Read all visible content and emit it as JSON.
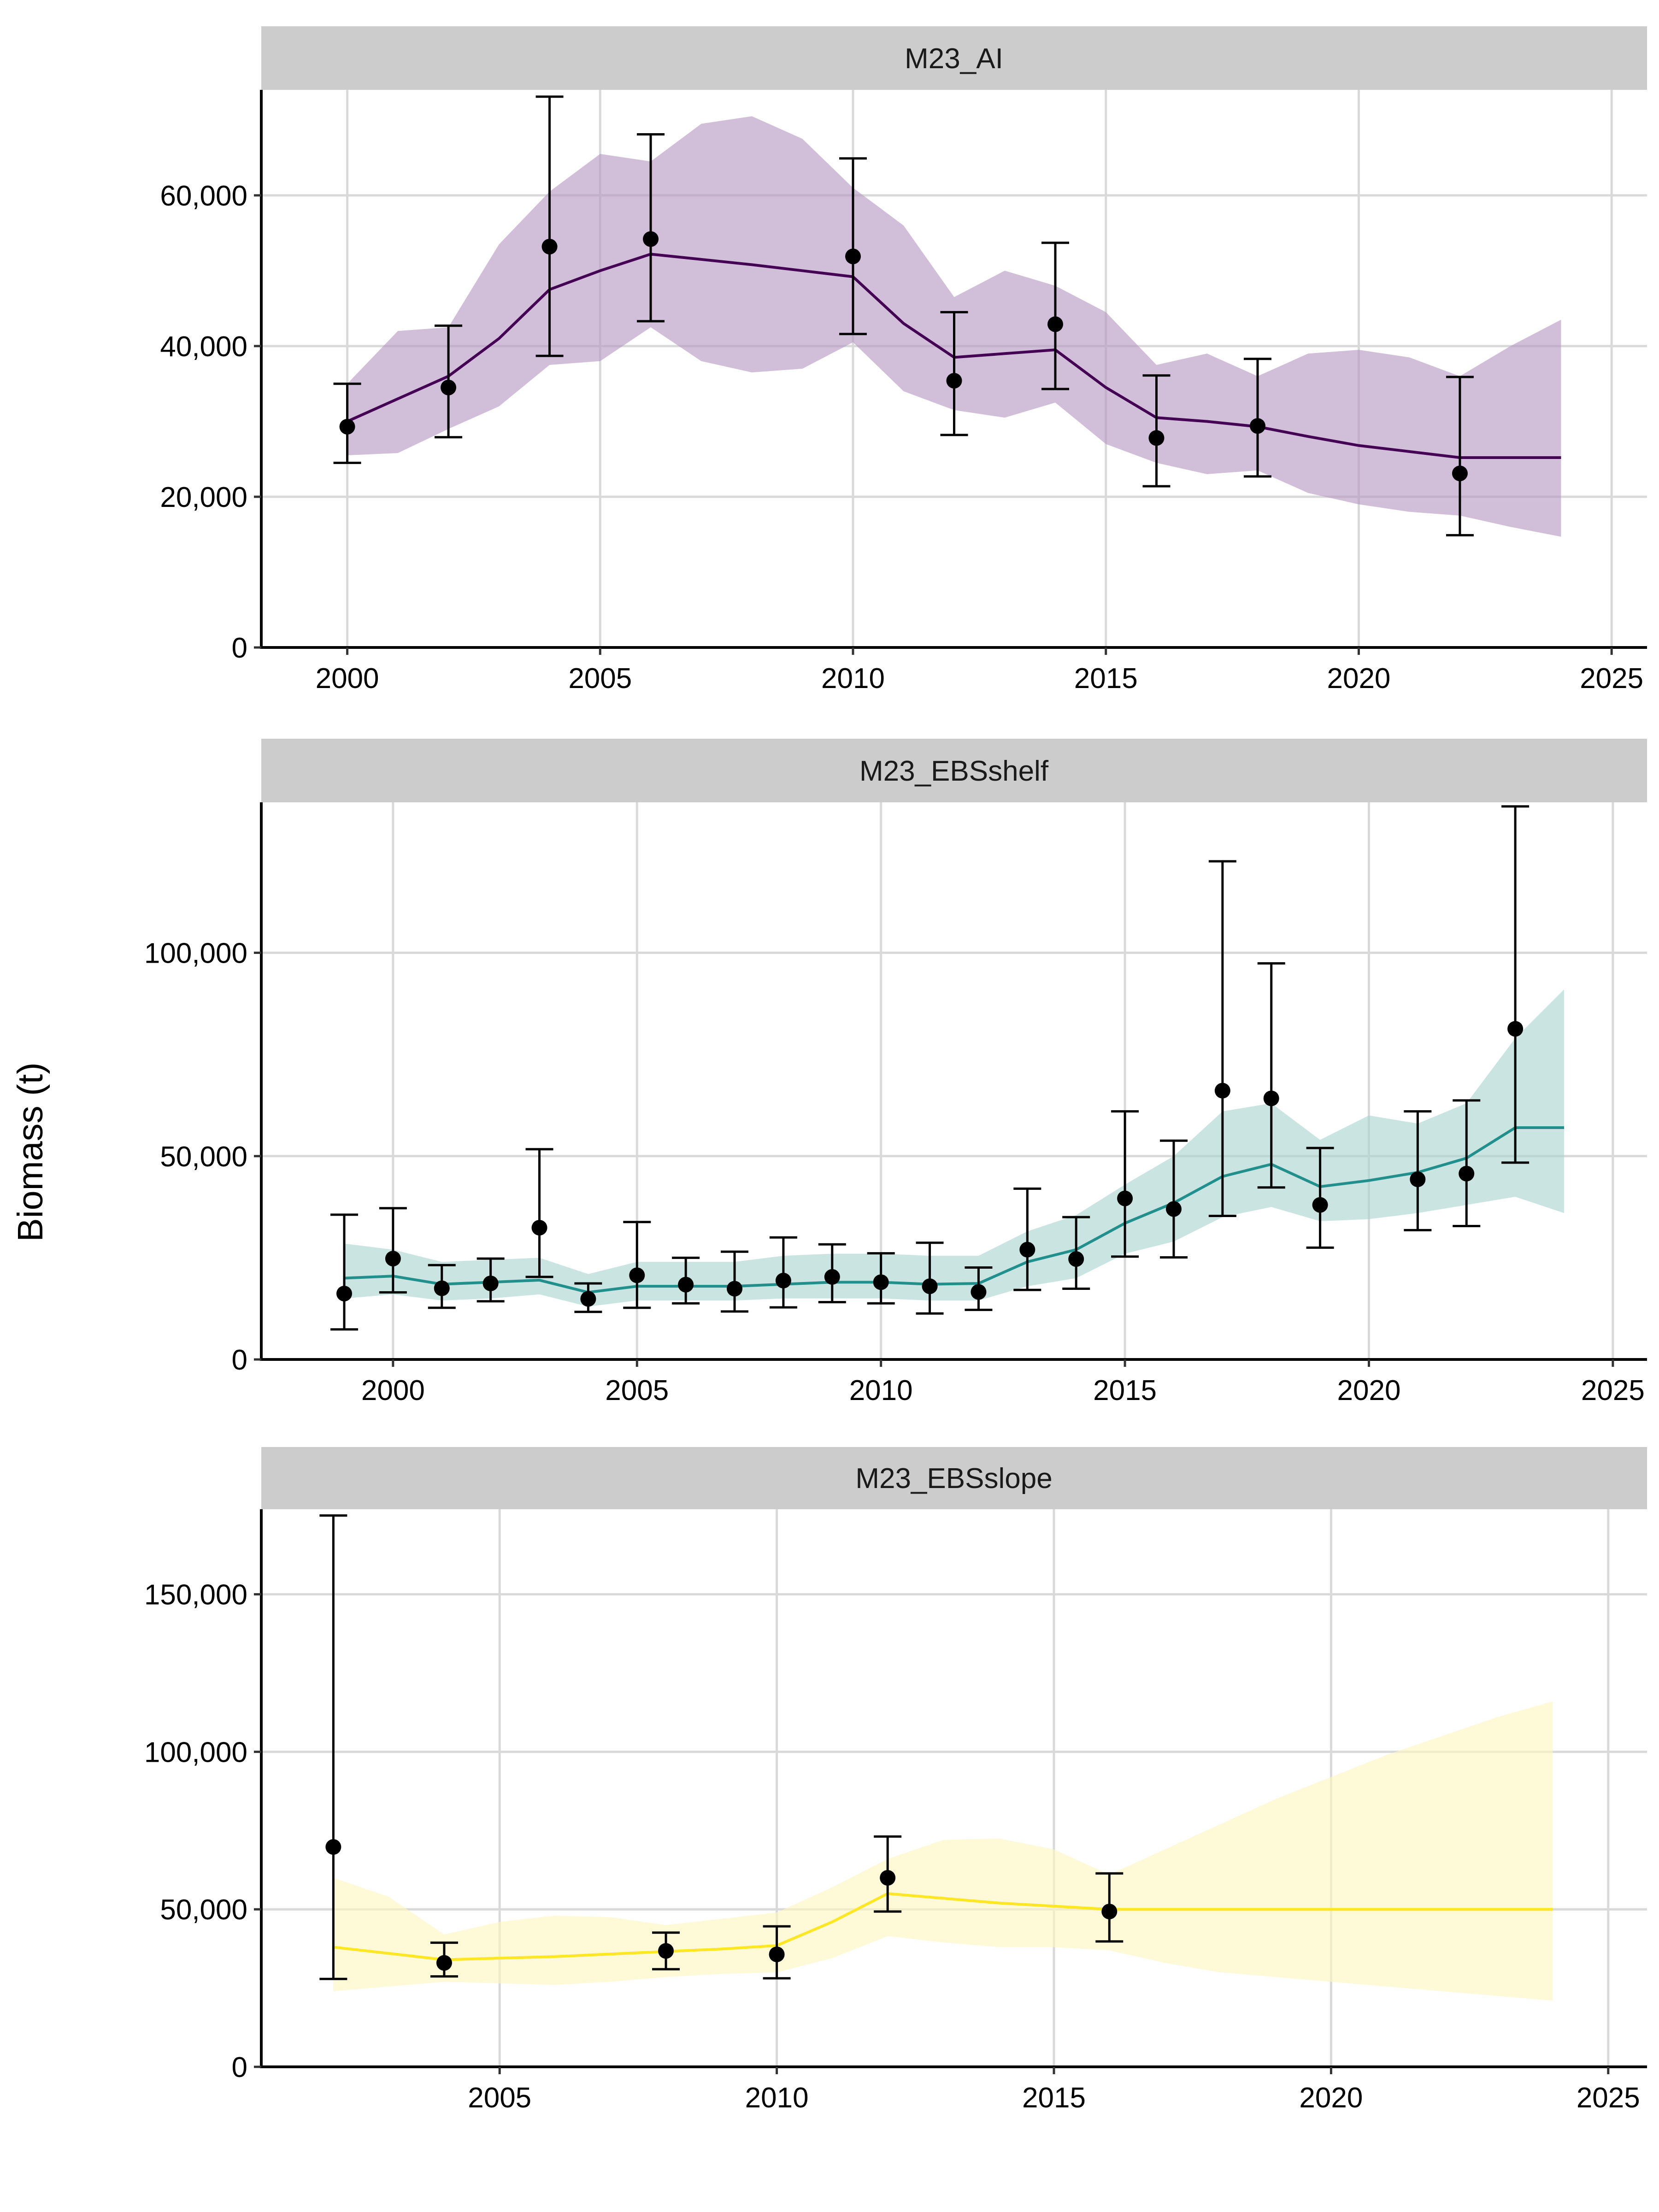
{
  "figure": {
    "y_axis_label": "Biomass (t)"
  },
  "chart_data": [
    {
      "type": "line",
      "title": "M23_AI",
      "ylabel": "Biomass (t)",
      "color": "#440154",
      "fill_color": "#b596c0",
      "xlim": [
        1998.3,
        2025.7
      ],
      "ylim": [
        0,
        74000
      ],
      "x_ticks": [
        2000,
        2005,
        2010,
        2015,
        2020,
        2025
      ],
      "x_tick_labels": [
        "2000",
        "2005",
        "2010",
        "2015",
        "2020",
        "2025"
      ],
      "y_ticks": [
        0,
        20000,
        40000,
        60000
      ],
      "y_tick_labels": [
        "0",
        "20,000",
        "40,000",
        "60,000"
      ],
      "grid": true,
      "estimate": {
        "x": [
          2000,
          2001,
          2002,
          2003,
          2004,
          2005,
          2006,
          2007,
          2008,
          2009,
          2010,
          2011,
          2012,
          2013,
          2014,
          2015,
          2016,
          2017,
          2018,
          2019,
          2020,
          2021,
          2022,
          2023,
          2024
        ],
        "y": [
          30000,
          33000,
          36000,
          41000,
          47500,
          50000,
          52200,
          51500,
          50800,
          50000,
          49200,
          43000,
          38500,
          39000,
          39500,
          34500,
          30500,
          30000,
          29300,
          28000,
          26800,
          26000,
          25200,
          25200,
          25200
        ],
        "lower": [
          25500,
          25800,
          29000,
          32000,
          37500,
          38000,
          42500,
          38000,
          36500,
          37000,
          40500,
          34000,
          31500,
          30500,
          32500,
          27000,
          24500,
          23000,
          23500,
          20500,
          19000,
          18000,
          17500,
          16000,
          14700
        ],
        "upper": [
          35000,
          42000,
          42500,
          53500,
          60500,
          65500,
          64500,
          69500,
          70500,
          67500,
          61000,
          56000,
          46500,
          50000,
          48000,
          44500,
          37500,
          39000,
          36000,
          39000,
          39500,
          38500,
          36000,
          40000,
          43500
        ]
      },
      "observed": {
        "x": [
          2000,
          2002,
          2004,
          2006,
          2010,
          2012,
          2014,
          2016,
          2018,
          2022
        ],
        "y": [
          29300,
          34500,
          53200,
          54200,
          51900,
          35400,
          42900,
          27800,
          29400,
          23100
        ],
        "lower": [
          24500,
          27900,
          38700,
          43300,
          41600,
          28200,
          34300,
          21400,
          22700,
          14900
        ],
        "upper": [
          35000,
          42700,
          73100,
          68100,
          64900,
          44500,
          53700,
          36100,
          38300,
          35900
        ]
      }
    },
    {
      "type": "line",
      "title": "M23_EBSshelf",
      "ylabel": "Biomass (t)",
      "color": "#21908c",
      "fill_color": "#a9d3cf",
      "xlim": [
        1997.3,
        2025.7
      ],
      "ylim": [
        0,
        137000
      ],
      "x_ticks": [
        2000,
        2005,
        2010,
        2015,
        2020,
        2025
      ],
      "x_tick_labels": [
        "2000",
        "2005",
        "2010",
        "2015",
        "2020",
        "2025"
      ],
      "y_ticks": [
        0,
        50000,
        100000
      ],
      "y_tick_labels": [
        "0",
        "50,000",
        "100,000"
      ],
      "grid": true,
      "estimate": {
        "x": [
          1999,
          2000,
          2001,
          2002,
          2003,
          2004,
          2005,
          2006,
          2007,
          2008,
          2009,
          2010,
          2011,
          2012,
          2013,
          2014,
          2015,
          2016,
          2017,
          2018,
          2019,
          2020,
          2021,
          2022,
          2023,
          2024
        ],
        "y": [
          20000,
          20500,
          18500,
          19000,
          19500,
          16500,
          18000,
          18000,
          18000,
          18500,
          19000,
          19000,
          18500,
          18700,
          24000,
          27000,
          33500,
          38500,
          45000,
          48000,
          42500,
          44000,
          46000,
          49500,
          57000,
          57000
        ],
        "lower": [
          15000,
          16000,
          14500,
          15000,
          16000,
          13000,
          14500,
          14500,
          14500,
          15000,
          15000,
          15000,
          14500,
          14500,
          18000,
          20000,
          26000,
          29000,
          35000,
          37500,
          34000,
          34500,
          36000,
          38000,
          40000,
          36000
        ],
        "upper": [
          28500,
          27000,
          24000,
          24500,
          25000,
          21000,
          24000,
          24000,
          24000,
          25500,
          26000,
          26000,
          25500,
          25500,
          31500,
          35500,
          43000,
          50000,
          61000,
          63000,
          54000,
          60000,
          58000,
          63000,
          79000,
          91000
        ]
      },
      "observed": {
        "x": [
          1999,
          2000,
          2001,
          2002,
          2003,
          2004,
          2005,
          2006,
          2007,
          2008,
          2009,
          2010,
          2011,
          2012,
          2013,
          2014,
          2015,
          2016,
          2017,
          2018,
          2019,
          2021,
          2022,
          2023
        ],
        "y": [
          16200,
          24800,
          17500,
          18700,
          32400,
          14900,
          20700,
          18400,
          17400,
          19400,
          20300,
          19000,
          18000,
          16600,
          27000,
          24700,
          39600,
          37000,
          66100,
          64200,
          38000,
          44300,
          45700,
          81300
        ],
        "lower": [
          7400,
          16500,
          12700,
          14300,
          20300,
          11700,
          12700,
          13800,
          11800,
          12800,
          14100,
          13800,
          11300,
          12200,
          17100,
          17400,
          25300,
          25100,
          35300,
          42300,
          27500,
          31800,
          32800,
          48400
        ],
        "upper": [
          35600,
          37200,
          23200,
          24800,
          51700,
          18700,
          33800,
          25000,
          26500,
          30000,
          28300,
          26100,
          28700,
          22600,
          42000,
          35000,
          61000,
          53800,
          122500,
          97400,
          52000,
          61000,
          63700,
          136000
        ]
      }
    },
    {
      "type": "line",
      "title": "M23_EBSslope",
      "ylabel": "Biomass (t)",
      "color": "#fde725",
      "fill_color": "#fdf6bf",
      "xlim": [
        2000.7,
        2025.7
      ],
      "ylim": [
        0,
        177000
      ],
      "x_ticks": [
        2005,
        2010,
        2015,
        2020,
        2025
      ],
      "x_tick_labels": [
        "2005",
        "2010",
        "2015",
        "2020",
        "2025"
      ],
      "y_ticks": [
        0,
        50000,
        100000,
        150000
      ],
      "y_tick_labels": [
        "0",
        "50,000",
        "100,000",
        "150,000"
      ],
      "grid": true,
      "estimate": {
        "x": [
          2002,
          2003,
          2004,
          2005,
          2006,
          2007,
          2008,
          2009,
          2010,
          2011,
          2012,
          2013,
          2014,
          2015,
          2016,
          2017,
          2018,
          2019,
          2020,
          2021,
          2022,
          2023,
          2024
        ],
        "y": [
          38000,
          36000,
          34000,
          34500,
          35000,
          35800,
          36600,
          37400,
          38500,
          46000,
          55000,
          53500,
          52000,
          51000,
          50000,
          50000,
          50000,
          50000,
          50000,
          50000,
          50000,
          50000,
          50000
        ],
        "lower": [
          24000,
          25500,
          27000,
          26500,
          26000,
          27000,
          28500,
          29500,
          30000,
          34500,
          41500,
          39500,
          38000,
          38000,
          37000,
          33000,
          30000,
          28500,
          27000,
          25500,
          24000,
          22500,
          21000
        ],
        "upper": [
          60000,
          54000,
          42000,
          46000,
          48000,
          47500,
          45000,
          47000,
          49000,
          57000,
          66000,
          72000,
          72500,
          69000,
          61000,
          69000,
          77000,
          85000,
          92000,
          99000,
          105000,
          111000,
          116000
        ]
      },
      "observed": {
        "x": [
          2002,
          2004,
          2008,
          2010,
          2012,
          2016
        ],
        "y": [
          69800,
          33000,
          36800,
          35700,
          60000,
          49300
        ],
        "lower": [
          27900,
          28700,
          31000,
          28100,
          49300,
          39800
        ],
        "upper": [
          175000,
          39400,
          42600,
          44600,
          73100,
          61400
        ]
      }
    }
  ]
}
